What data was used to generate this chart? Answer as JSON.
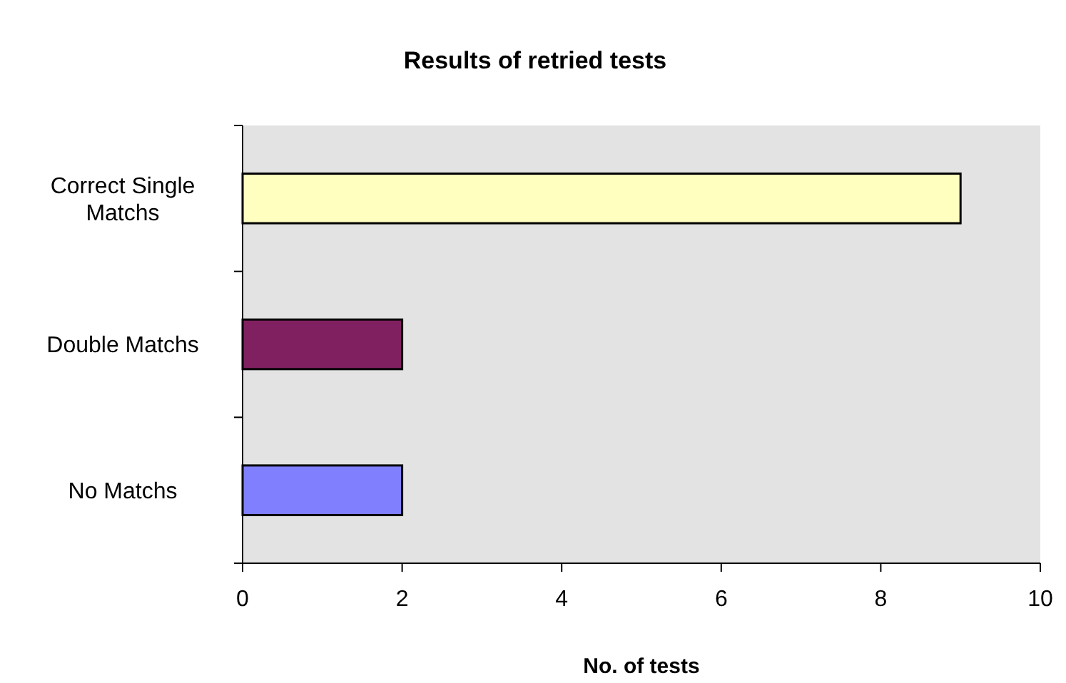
{
  "chart_data": {
    "type": "bar",
    "orientation": "horizontal",
    "title": "Results of retried tests",
    "xlabel": "No. of tests",
    "categories": [
      "Correct Single Matchs",
      "Double Matchs",
      "No Matchs"
    ],
    "values": [
      9,
      2,
      2
    ],
    "colors": [
      "#ffffc0",
      "#802060",
      "#8080ff"
    ],
    "xlim": [
      0,
      10
    ],
    "xticks": [
      0,
      2,
      4,
      6,
      8,
      10
    ],
    "grid": false
  }
}
